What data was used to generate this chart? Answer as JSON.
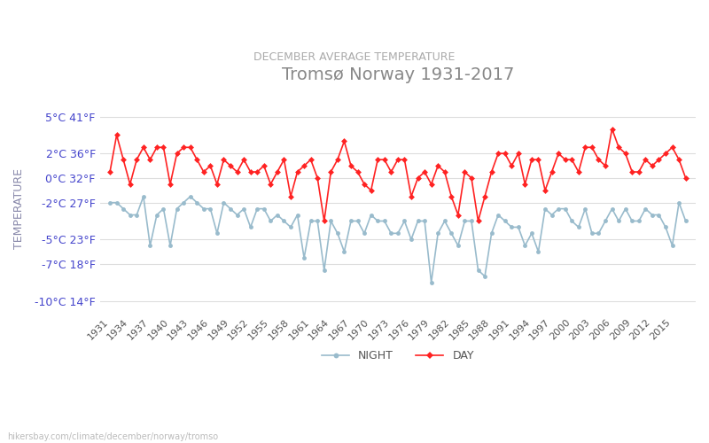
{
  "title": "Tromsø Norway 1931-2017",
  "subtitle": "DECEMBER AVERAGE TEMPERATURE",
  "xlabel": "",
  "ylabel": "TEMPERATURE",
  "title_color": "#888888",
  "subtitle_color": "#aaaaaa",
  "ylabel_color": "#8888aa",
  "background_color": "#ffffff",
  "grid_color": "#dddddd",
  "years": [
    1931,
    1932,
    1933,
    1934,
    1935,
    1936,
    1937,
    1938,
    1939,
    1940,
    1941,
    1942,
    1943,
    1944,
    1945,
    1946,
    1947,
    1948,
    1949,
    1950,
    1951,
    1952,
    1953,
    1954,
    1955,
    1956,
    1957,
    1958,
    1959,
    1960,
    1961,
    1962,
    1963,
    1964,
    1965,
    1966,
    1967,
    1968,
    1969,
    1970,
    1971,
    1972,
    1973,
    1974,
    1975,
    1976,
    1977,
    1978,
    1979,
    1980,
    1981,
    1982,
    1983,
    1984,
    1985,
    1986,
    1987,
    1988,
    1989,
    1990,
    1991,
    1992,
    1993,
    1994,
    1995,
    1996,
    1997,
    1998,
    1999,
    2000,
    2001,
    2002,
    2003,
    2004,
    2005,
    2006,
    2007,
    2008,
    2009,
    2010,
    2011,
    2012,
    2013,
    2014,
    2015,
    2016,
    2017
  ],
  "day": [
    0.5,
    3.5,
    1.5,
    -0.5,
    1.5,
    2.5,
    1.5,
    2.5,
    2.5,
    -0.5,
    2.0,
    2.5,
    2.5,
    1.5,
    0.5,
    1.0,
    -0.5,
    1.5,
    1.0,
    0.5,
    1.5,
    0.5,
    0.5,
    1.0,
    -0.5,
    0.5,
    1.5,
    -1.5,
    0.5,
    1.0,
    1.5,
    0.0,
    -3.5,
    0.5,
    1.5,
    3.0,
    1.0,
    0.5,
    -0.5,
    -1.0,
    1.5,
    1.5,
    0.5,
    1.5,
    1.5,
    -1.5,
    0.0,
    0.5,
    -0.5,
    1.0,
    0.5,
    -1.5,
    -3.0,
    0.5,
    0.0,
    -3.5,
    -1.5,
    0.5,
    2.0,
    2.0,
    1.0,
    2.0,
    -0.5,
    1.5,
    1.5,
    -1.0,
    0.5,
    2.0,
    1.5,
    1.5,
    0.5,
    2.5,
    2.5,
    1.5,
    1.0,
    4.0,
    2.5,
    2.0,
    0.5,
    0.5,
    1.5,
    1.0,
    1.5,
    2.0,
    2.5,
    1.5,
    0.0
  ],
  "night": [
    -2.0,
    -2.0,
    -2.5,
    -3.0,
    -3.0,
    -1.5,
    -5.5,
    -3.0,
    -2.5,
    -5.5,
    -2.5,
    -2.0,
    -1.5,
    -2.0,
    -2.5,
    -2.5,
    -4.5,
    -2.0,
    -2.5,
    -3.0,
    -2.5,
    -4.0,
    -2.5,
    -2.5,
    -3.5,
    -3.0,
    -3.5,
    -4.0,
    -3.0,
    -6.5,
    -3.5,
    -3.5,
    -7.5,
    -3.5,
    -4.5,
    -6.0,
    -3.5,
    -3.5,
    -4.5,
    -3.0,
    -3.5,
    -3.5,
    -4.5,
    -4.5,
    -3.5,
    -5.0,
    -3.5,
    -3.5,
    -8.5,
    -4.5,
    -3.5,
    -4.5,
    -5.5,
    -3.5,
    -3.5,
    -7.5,
    -8.0,
    -4.5,
    -3.0,
    -3.5,
    -4.0,
    -4.0,
    -5.5,
    -4.5,
    -6.0,
    -2.5,
    -3.0,
    -2.5,
    -2.5,
    -3.5,
    -4.0,
    -2.5,
    -4.5,
    -4.5,
    -3.5,
    -2.5,
    -3.5,
    -2.5,
    -3.5,
    -3.5,
    -2.5,
    -3.0,
    -3.0,
    -4.0,
    -5.5,
    -2.0,
    -3.5
  ],
  "day_color": "#ff2222",
  "night_color": "#99bbcc",
  "day_label": "DAY",
  "night_label": "NIGHT",
  "ylim": [
    -11,
    6
  ],
  "yticks_c": [
    -10,
    -7,
    -5,
    -2,
    0,
    2,
    5
  ],
  "yticks_f": [
    14,
    18,
    23,
    27,
    32,
    36,
    41
  ],
  "xtick_years": [
    1931,
    1934,
    1937,
    1940,
    1943,
    1946,
    1949,
    1952,
    1955,
    1958,
    1961,
    1964,
    1967,
    1970,
    1973,
    1976,
    1979,
    1982,
    1985,
    1988,
    1991,
    1994,
    1997,
    2000,
    2003,
    2006,
    2009,
    2012,
    2015
  ],
  "watermark": "hikersbay.com/climate/december/norway/tromso"
}
